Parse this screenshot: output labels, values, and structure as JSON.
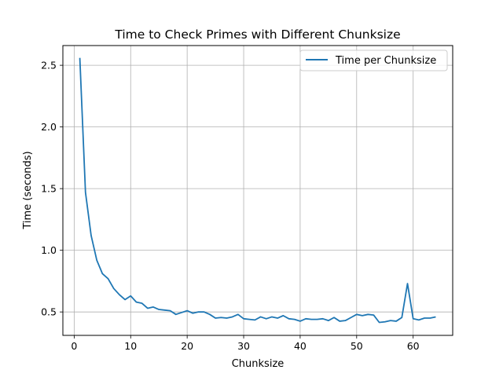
{
  "chart_data": {
    "type": "line",
    "title": "Time to Check Primes with Different Chunksize",
    "xlabel": "Chunksize",
    "ylabel": "Time (seconds)",
    "xlim": [
      -2,
      67
    ],
    "ylim": [
      0.31,
      2.66
    ],
    "xticks": [
      0,
      10,
      20,
      30,
      40,
      50,
      60
    ],
    "yticks": [
      0.5,
      1.0,
      1.5,
      2.0,
      2.5
    ],
    "ytick_labels": [
      "0.5",
      "1.0",
      "1.5",
      "2.0",
      "2.5"
    ],
    "grid": true,
    "legend_position": "top-right",
    "colors": {
      "series": "#1f77b4",
      "grid": "#b0b0b0",
      "axes": "#000000"
    },
    "series": [
      {
        "name": "Time per Chunksize",
        "x": [
          1,
          2,
          3,
          4,
          5,
          6,
          7,
          8,
          9,
          10,
          11,
          12,
          13,
          14,
          15,
          16,
          17,
          18,
          19,
          20,
          21,
          22,
          23,
          24,
          25,
          26,
          27,
          28,
          29,
          30,
          31,
          32,
          33,
          34,
          35,
          36,
          37,
          38,
          39,
          40,
          41,
          42,
          43,
          44,
          45,
          46,
          47,
          48,
          49,
          50,
          51,
          52,
          53,
          54,
          55,
          56,
          57,
          58,
          59,
          60,
          61,
          62,
          63,
          64
        ],
        "values": [
          2.56,
          1.47,
          1.12,
          0.92,
          0.81,
          0.77,
          0.69,
          0.64,
          0.6,
          0.63,
          0.58,
          0.57,
          0.53,
          0.54,
          0.52,
          0.515,
          0.51,
          0.48,
          0.495,
          0.51,
          0.49,
          0.5,
          0.5,
          0.48,
          0.45,
          0.455,
          0.45,
          0.46,
          0.48,
          0.445,
          0.44,
          0.435,
          0.46,
          0.445,
          0.46,
          0.45,
          0.47,
          0.445,
          0.44,
          0.425,
          0.445,
          0.44,
          0.44,
          0.445,
          0.43,
          0.455,
          0.425,
          0.43,
          0.455,
          0.48,
          0.47,
          0.48,
          0.475,
          0.415,
          0.42,
          0.43,
          0.425,
          0.455,
          0.73,
          0.445,
          0.435,
          0.45,
          0.45,
          0.46
        ]
      }
    ]
  }
}
